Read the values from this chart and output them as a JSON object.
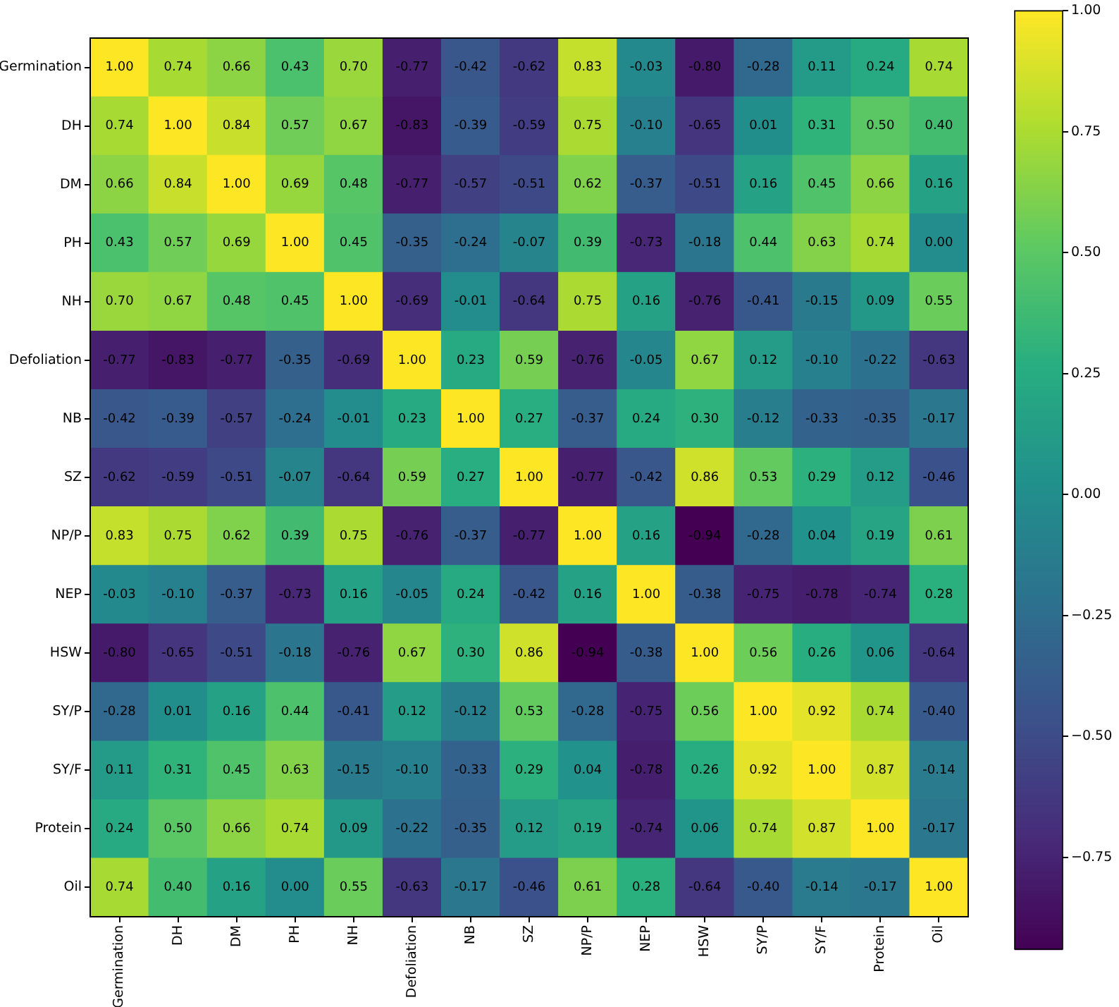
{
  "chart_data": {
    "type": "heatmap",
    "categories": [
      "Germination",
      "DH",
      "DM",
      "PH",
      "NH",
      "Defoliation",
      "NB",
      "SZ",
      "NP/P",
      "NEP",
      "HSW",
      "SY/P",
      "SY/F",
      "Protein",
      "Oil"
    ],
    "y_categories": [
      "Germination",
      "DH",
      "DM",
      "PH",
      "NH",
      "Defoliation",
      "NB",
      "SZ",
      "NP/P",
      "NEP",
      "HSW",
      "SY/P",
      "SY/F",
      "Protein",
      "Oil"
    ],
    "cells": [
      [
        1.0,
        0.74,
        0.66,
        0.43,
        0.7,
        -0.77,
        -0.42,
        -0.62,
        0.83,
        -0.03,
        -0.8,
        -0.28,
        0.11,
        0.24,
        0.74
      ],
      [
        0.74,
        1.0,
        0.84,
        0.57,
        0.67,
        -0.83,
        -0.39,
        -0.59,
        0.75,
        -0.1,
        -0.65,
        0.01,
        0.31,
        0.5,
        0.4
      ],
      [
        0.66,
        0.84,
        1.0,
        0.69,
        0.48,
        -0.77,
        -0.57,
        -0.51,
        0.62,
        -0.37,
        -0.51,
        0.16,
        0.45,
        0.66,
        0.16
      ],
      [
        0.43,
        0.57,
        0.69,
        1.0,
        0.45,
        -0.35,
        -0.24,
        -0.07,
        0.39,
        -0.73,
        -0.18,
        0.44,
        0.63,
        0.74,
        0.0
      ],
      [
        0.7,
        0.67,
        0.48,
        0.45,
        1.0,
        -0.69,
        -0.01,
        -0.64,
        0.75,
        0.16,
        -0.76,
        -0.41,
        -0.15,
        0.09,
        0.55
      ],
      [
        -0.77,
        -0.83,
        -0.77,
        -0.35,
        -0.69,
        1.0,
        0.23,
        0.59,
        -0.76,
        -0.05,
        0.67,
        0.12,
        -0.1,
        -0.22,
        -0.63
      ],
      [
        -0.42,
        -0.39,
        -0.57,
        -0.24,
        -0.01,
        0.23,
        1.0,
        0.27,
        -0.37,
        0.24,
        0.3,
        -0.12,
        -0.33,
        -0.35,
        -0.17
      ],
      [
        -0.62,
        -0.59,
        -0.51,
        -0.07,
        -0.64,
        0.59,
        0.27,
        1.0,
        -0.77,
        -0.42,
        0.86,
        0.53,
        0.29,
        0.12,
        -0.46
      ],
      [
        0.83,
        0.75,
        0.62,
        0.39,
        0.75,
        -0.76,
        -0.37,
        -0.77,
        1.0,
        0.16,
        -0.94,
        -0.28,
        0.04,
        0.19,
        0.61
      ],
      [
        -0.03,
        -0.1,
        -0.37,
        -0.73,
        0.16,
        -0.05,
        0.24,
        -0.42,
        0.16,
        1.0,
        -0.38,
        -0.75,
        -0.78,
        -0.74,
        0.28
      ],
      [
        -0.8,
        -0.65,
        -0.51,
        -0.18,
        -0.76,
        0.67,
        0.3,
        0.86,
        -0.94,
        -0.38,
        1.0,
        0.56,
        0.26,
        0.06,
        -0.64
      ],
      [
        -0.28,
        0.01,
        0.16,
        0.44,
        -0.41,
        0.12,
        -0.12,
        0.53,
        -0.28,
        -0.75,
        0.56,
        1.0,
        0.92,
        0.74,
        -0.4
      ],
      [
        0.11,
        0.31,
        0.45,
        0.63,
        -0.15,
        -0.1,
        -0.33,
        0.29,
        0.04,
        -0.78,
        0.26,
        0.92,
        1.0,
        0.87,
        -0.14
      ],
      [
        0.24,
        0.5,
        0.66,
        0.74,
        0.09,
        -0.22,
        -0.35,
        0.12,
        0.19,
        -0.74,
        0.06,
        0.74,
        0.87,
        1.0,
        -0.17
      ],
      [
        0.74,
        0.4,
        0.16,
        0.0,
        0.55,
        -0.63,
        -0.17,
        -0.46,
        0.61,
        0.28,
        -0.64,
        -0.4,
        -0.14,
        -0.17,
        1.0
      ]
    ],
    "cell_labels": [
      [
        "1.00",
        "0.74",
        "0.66",
        "0.43",
        "0.70",
        "-0.77",
        "-0.42",
        "-0.62",
        "0.83",
        "-0.03",
        "-0.80",
        "-0.28",
        "0.11",
        "0.24",
        "0.74"
      ],
      [
        "0.74",
        "1.00",
        "0.84",
        "0.57",
        "0.67",
        "-0.83",
        "-0.39",
        "-0.59",
        "0.75",
        "-0.10",
        "-0.65",
        "0.01",
        "0.31",
        "0.50",
        "0.40"
      ],
      [
        "0.66",
        "0.84",
        "1.00",
        "0.69",
        "0.48",
        "-0.77",
        "-0.57",
        "-0.51",
        "0.62",
        "-0.37",
        "-0.51",
        "0.16",
        "0.45",
        "0.66",
        "0.16"
      ],
      [
        "0.43",
        "0.57",
        "0.69",
        "1.00",
        "0.45",
        "-0.35",
        "-0.24",
        "-0.07",
        "0.39",
        "-0.73",
        "-0.18",
        "0.44",
        "0.63",
        "0.74",
        "0.00"
      ],
      [
        "0.70",
        "0.67",
        "0.48",
        "0.45",
        "1.00",
        "-0.69",
        "-0.01",
        "-0.64",
        "0.75",
        "0.16",
        "-0.76",
        "-0.41",
        "-0.15",
        "0.09",
        "0.55"
      ],
      [
        "-0.77",
        "-0.83",
        "-0.77",
        "-0.35",
        "-0.69",
        "1.00",
        "0.23",
        "0.59",
        "-0.76",
        "-0.05",
        "0.67",
        "0.12",
        "-0.10",
        "-0.22",
        "-0.63"
      ],
      [
        "-0.42",
        "-0.39",
        "-0.57",
        "-0.24",
        "-0.01",
        "0.23",
        "1.00",
        "0.27",
        "-0.37",
        "0.24",
        "0.30",
        "-0.12",
        "-0.33",
        "-0.35",
        "-0.17"
      ],
      [
        "-0.62",
        "-0.59",
        "-0.51",
        "-0.07",
        "-0.64",
        "0.59",
        "0.27",
        "1.00",
        "-0.77",
        "-0.42",
        "0.86",
        "0.53",
        "0.29",
        "0.12",
        "-0.46"
      ],
      [
        "0.83",
        "0.75",
        "0.62",
        "0.39",
        "0.75",
        "-0.76",
        "-0.37",
        "-0.77",
        "1.00",
        "0.16",
        "-0.94",
        "-0.28",
        "0.04",
        "0.19",
        "0.61"
      ],
      [
        "-0.03",
        "-0.10",
        "-0.37",
        "-0.73",
        "0.16",
        "-0.05",
        "0.24",
        "-0.42",
        "0.16",
        "1.00",
        "-0.38",
        "-0.75",
        "-0.78",
        "-0.74",
        "0.28"
      ],
      [
        "-0.80",
        "-0.65",
        "-0.51",
        "-0.18",
        "-0.76",
        "0.67",
        "0.30",
        "0.86",
        "-0.94",
        "-0.38",
        "1.00",
        "0.56",
        "0.26",
        "0.06",
        "-0.64"
      ],
      [
        "-0.28",
        "0.01",
        "0.16",
        "0.44",
        "-0.41",
        "0.12",
        "-0.12",
        "0.53",
        "-0.28",
        "-0.75",
        "0.56",
        "1.00",
        "0.92",
        "0.74",
        "-0.40"
      ],
      [
        "0.11",
        "0.31",
        "0.45",
        "0.63",
        "-0.15",
        "-0.10",
        "-0.33",
        "0.29",
        "0.04",
        "-0.78",
        "0.26",
        "0.92",
        "1.00",
        "0.87",
        "-0.14"
      ],
      [
        "0.24",
        "0.50",
        "0.66",
        "0.74",
        "0.09",
        "-0.22",
        "-0.35",
        "0.12",
        "0.19",
        "-0.74",
        "0.06",
        "0.74",
        "0.87",
        "1.00",
        "-0.17"
      ],
      [
        "0.74",
        "0.40",
        "0.16",
        "0.00",
        "0.55",
        "-0.63",
        "-0.17",
        "-0.46",
        "0.61",
        "0.28",
        "-0.64",
        "-0.40",
        "-0.14",
        "-0.17",
        "1.00"
      ]
    ],
    "clim": [
      -0.94,
      1.0
    ],
    "cticks": [
      {
        "value": -0.75,
        "label": "−0.75"
      },
      {
        "value": -0.5,
        "label": "−0.50"
      },
      {
        "value": -0.25,
        "label": "−0.25"
      },
      {
        "value": 0,
        "label": "0.00"
      },
      {
        "value": 0.25,
        "label": "0.25"
      },
      {
        "value": 0.5,
        "label": "0.50"
      },
      {
        "value": 0.75,
        "label": "0.75"
      },
      {
        "value": 1,
        "label": "1.00"
      }
    ]
  }
}
